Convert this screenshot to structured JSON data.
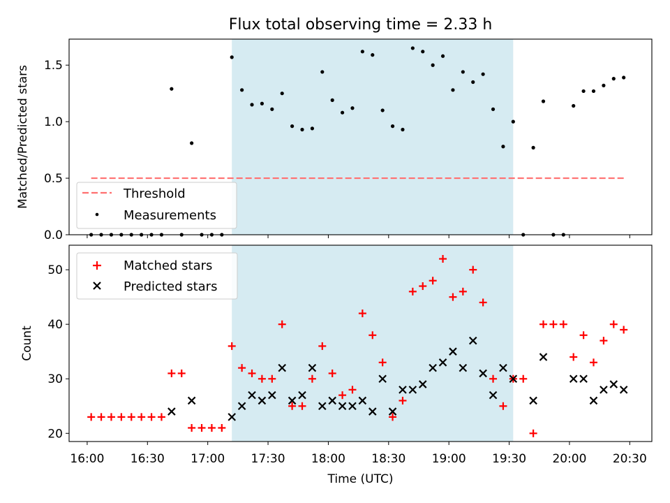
{
  "chart_data": [
    {
      "type": "scatter",
      "title": "Flux total observing time = 2.33 h",
      "xlabel": "",
      "ylabel": "Matched/Predicted stars",
      "xlim": [
        "15:51",
        "20:41"
      ],
      "ylim": [
        0,
        1.73
      ],
      "yticks": [
        0.0,
        0.5,
        1.0,
        1.5
      ],
      "ytick_labels": [
        "0.0",
        "0.5",
        "1.0",
        "1.5"
      ],
      "shaded_span": [
        "17:12",
        "19:32"
      ],
      "shaded_color": "#add8e6",
      "legend_position": "lower left",
      "series": [
        {
          "name": "Threshold",
          "kind": "line",
          "style": "dashed",
          "color": "#ff7070",
          "x": [
            "16:02",
            "20:27"
          ],
          "y": [
            0.5,
            0.5
          ]
        },
        {
          "name": "Measurements",
          "kind": "scatter",
          "marker": "dot",
          "color": "#000000",
          "x": [
            "16:02",
            "16:07",
            "16:12",
            "16:17",
            "16:22",
            "16:27",
            "16:32",
            "16:37",
            "16:42",
            "16:47",
            "16:52",
            "16:57",
            "17:02",
            "17:07",
            "17:12",
            "17:17",
            "17:22",
            "17:27",
            "17:32",
            "17:37",
            "17:42",
            "17:47",
            "17:52",
            "17:57",
            "18:02",
            "18:07",
            "18:12",
            "18:17",
            "18:22",
            "18:27",
            "18:32",
            "18:37",
            "18:42",
            "18:47",
            "18:52",
            "18:57",
            "19:02",
            "19:07",
            "19:12",
            "19:17",
            "19:22",
            "19:27",
            "19:32",
            "19:37",
            "19:42",
            "19:47",
            "19:52",
            "19:57",
            "20:02",
            "20:07",
            "20:12",
            "20:17",
            "20:22",
            "20:27"
          ],
          "y": [
            0.0,
            0.0,
            0.0,
            0.0,
            0.0,
            0.0,
            0.0,
            0.0,
            1.29,
            0.0,
            0.81,
            0.0,
            0.0,
            0.0,
            1.57,
            1.28,
            1.15,
            1.16,
            1.11,
            1.25,
            0.96,
            0.93,
            0.94,
            1.44,
            1.19,
            1.08,
            1.12,
            1.62,
            1.59,
            1.1,
            0.96,
            0.93,
            1.65,
            1.62,
            1.5,
            1.58,
            1.28,
            1.44,
            1.35,
            1.42,
            1.11,
            0.78,
            1.0,
            0.0,
            0.77,
            1.18,
            0.0,
            0.0,
            1.14,
            1.27,
            1.27,
            1.32,
            1.38,
            1.39
          ]
        }
      ]
    },
    {
      "type": "scatter",
      "title": "",
      "xlabel": "Time (UTC)",
      "ylabel": "Count",
      "xlim": [
        "15:51",
        "20:41"
      ],
      "ylim": [
        18.5,
        54.5
      ],
      "yticks": [
        20,
        30,
        40,
        50
      ],
      "ytick_labels": [
        "20",
        "30",
        "40",
        "50"
      ],
      "xtick_labels": [
        "16:00",
        "16:30",
        "17:00",
        "17:30",
        "18:00",
        "18:30",
        "19:00",
        "19:30",
        "20:00",
        "20:30"
      ],
      "xtick_values": [
        "16:00",
        "16:30",
        "17:00",
        "17:30",
        "18:00",
        "18:30",
        "19:00",
        "19:30",
        "20:00",
        "20:30"
      ],
      "shaded_span": [
        "17:12",
        "19:32"
      ],
      "shaded_color": "#add8e6",
      "legend_position": "upper left",
      "x": [
        "16:02",
        "16:07",
        "16:12",
        "16:17",
        "16:22",
        "16:27",
        "16:32",
        "16:37",
        "16:42",
        "16:47",
        "16:52",
        "16:57",
        "17:02",
        "17:07",
        "17:12",
        "17:17",
        "17:22",
        "17:27",
        "17:32",
        "17:37",
        "17:42",
        "17:47",
        "17:52",
        "17:57",
        "18:02",
        "18:07",
        "18:12",
        "18:17",
        "18:22",
        "18:27",
        "18:32",
        "18:37",
        "18:42",
        "18:47",
        "18:52",
        "18:57",
        "19:02",
        "19:07",
        "19:12",
        "19:17",
        "19:22",
        "19:27",
        "19:32",
        "19:37",
        "19:42",
        "19:47",
        "19:52",
        "19:57",
        "20:02",
        "20:07",
        "20:12",
        "20:17",
        "20:22",
        "20:27"
      ],
      "series": [
        {
          "name": "Matched stars",
          "marker": "plus",
          "color": "#ff0000",
          "values": [
            23,
            23,
            23,
            23,
            23,
            23,
            23,
            23,
            31,
            31,
            21,
            21,
            21,
            21,
            36,
            32,
            31,
            30,
            30,
            40,
            25,
            25,
            30,
            36,
            31,
            27,
            28,
            42,
            38,
            33,
            23,
            26,
            46,
            47,
            48,
            52,
            45,
            46,
            50,
            44,
            30,
            25,
            30,
            30,
            20,
            40,
            40,
            40,
            34,
            38,
            33,
            37,
            40,
            39
          ]
        },
        {
          "name": "Predicted stars",
          "marker": "x",
          "color": "#000000",
          "values": [
            null,
            null,
            null,
            null,
            null,
            null,
            null,
            null,
            24,
            null,
            26,
            null,
            null,
            null,
            23,
            25,
            27,
            26,
            27,
            32,
            26,
            27,
            32,
            25,
            26,
            25,
            25,
            26,
            24,
            30,
            24,
            28,
            28,
            29,
            32,
            33,
            35,
            32,
            37,
            31,
            27,
            32,
            30,
            null,
            26,
            34,
            null,
            null,
            30,
            30,
            26,
            28,
            29,
            28
          ]
        }
      ]
    }
  ]
}
